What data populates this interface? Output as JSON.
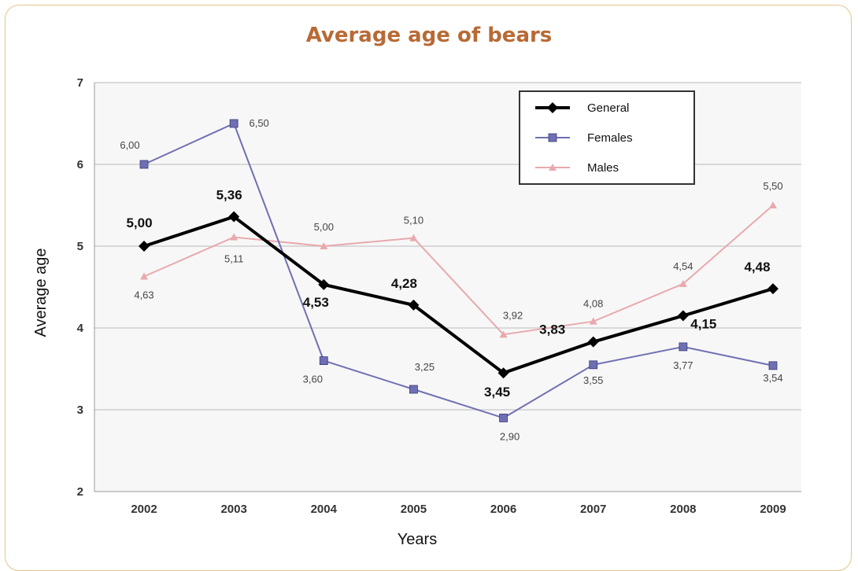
{
  "chart_data": {
    "type": "line",
    "title": "Average age of bears",
    "xlabel": "Years",
    "ylabel": "Average age",
    "categories": [
      "2002",
      "2003",
      "2004",
      "2005",
      "2006",
      "2007",
      "2008",
      "2009"
    ],
    "ylim": [
      2,
      7
    ],
    "yticks": [
      "2",
      "3",
      "4",
      "5",
      "6",
      "7"
    ],
    "grid": true,
    "legend_position": "top-right",
    "series": [
      {
        "name": "General",
        "color": "#000000",
        "marker": "diamond",
        "values": [
          5.0,
          5.36,
          4.53,
          4.28,
          3.45,
          3.83,
          4.15,
          4.48
        ],
        "labels": [
          "5,00",
          "5,36",
          "4,53",
          "4,28",
          "3,45",
          "3,83",
          "4,15",
          "4,48"
        ]
      },
      {
        "name": "Females",
        "color": "#6f6fb3",
        "marker": "square",
        "values": [
          6.0,
          6.5,
          3.6,
          3.25,
          2.9,
          3.55,
          3.77,
          3.54
        ],
        "labels": [
          "6,00",
          "6,50",
          "3,60",
          "3,25",
          "2,90",
          "3,55",
          "3,77",
          "3,54"
        ]
      },
      {
        "name": "Males",
        "color": "#e8a9ae",
        "marker": "triangle",
        "values": [
          4.63,
          5.11,
          5.0,
          5.1,
          3.92,
          4.08,
          4.54,
          5.5
        ],
        "labels": [
          "4,63",
          "5,11",
          "5,00",
          "5,10",
          "3,92",
          "4,08",
          "4,54",
          "5,50"
        ]
      }
    ]
  }
}
